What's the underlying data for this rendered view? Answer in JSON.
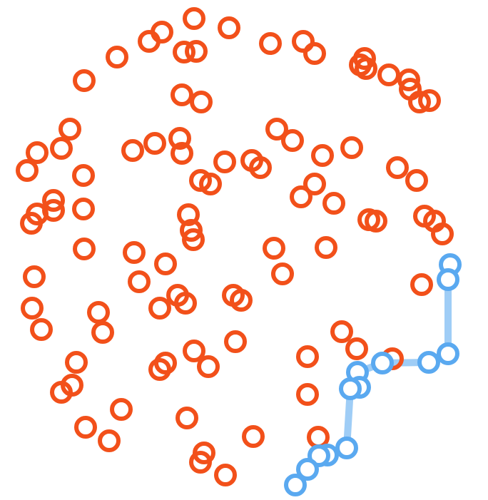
{
  "colors": {
    "background": "#ffffff",
    "node": "#f2501a",
    "path_node": "#5aa9f0",
    "path_line": "#9fcdf6"
  },
  "diagram": {
    "type": "scatter-path",
    "description_free": true
  }
}
